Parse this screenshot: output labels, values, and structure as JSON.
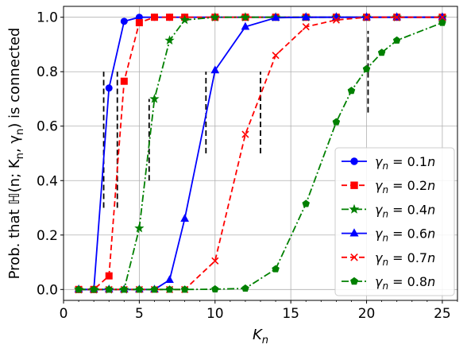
{
  "chart_data": {
    "type": "line",
    "title": "",
    "xlabel": "K",
    "xlabel_sub": "n",
    "ylabel": "Prob. that ℍ(n; K",
    "ylabel_sub1": "n",
    "ylabel_mid": ", γ",
    "ylabel_sub2": "n",
    "ylabel_end": ") is connected",
    "xlim": [
      0,
      26
    ],
    "ylim": [
      -0.04,
      1.04
    ],
    "xticks": [
      0,
      5,
      10,
      15,
      20,
      25
    ],
    "xtick_labels": [
      "0",
      "5",
      "10",
      "15",
      "20",
      "25"
    ],
    "yticks": [
      0.0,
      0.2,
      0.4,
      0.6,
      0.8,
      1.0
    ],
    "ytick_labels": [
      "0.0",
      "0.2",
      "0.4",
      "0.6",
      "0.8",
      "1.0"
    ],
    "grid": true,
    "legend_position": "lower-right",
    "series": [
      {
        "name": "γn = 0.1n",
        "legend_prefix": "γ",
        "legend_sub": "n",
        "legend_suffix": " = 0.1",
        "legend_end": "n",
        "color": "#0000ff",
        "marker": "circle",
        "dash": "solid",
        "x": [
          1,
          2,
          3,
          4,
          5,
          6,
          7,
          8,
          10,
          12,
          14,
          16,
          18,
          20,
          22,
          25
        ],
        "y": [
          0,
          0,
          0.74,
          0.985,
          1,
          1,
          1,
          1,
          1,
          1,
          1,
          1,
          1,
          1,
          1,
          1
        ]
      },
      {
        "name": "γn = 0.2n",
        "legend_prefix": "γ",
        "legend_sub": "n",
        "legend_suffix": " = 0.2",
        "legend_end": "n",
        "color": "#ff0000",
        "marker": "square",
        "dash": "dashed",
        "x": [
          1,
          2,
          3,
          4,
          5,
          6,
          7,
          8,
          10,
          12,
          14,
          16,
          18,
          20,
          22,
          25
        ],
        "y": [
          0,
          0,
          0.05,
          0.765,
          0.98,
          1,
          1,
          1,
          1,
          1,
          1,
          1,
          1,
          1,
          1,
          1
        ]
      },
      {
        "name": "γn = 0.4n",
        "legend_prefix": "γ",
        "legend_sub": "n",
        "legend_suffix": " = 0.4",
        "legend_end": "n",
        "color": "#008000",
        "marker": "star",
        "dash": "dashdot",
        "x": [
          1,
          2,
          3,
          4,
          5,
          6,
          7,
          8,
          10,
          12,
          14,
          16,
          18,
          20,
          22,
          25
        ],
        "y": [
          0,
          0,
          0,
          0,
          0.225,
          0.7,
          0.915,
          0.99,
          1,
          1,
          1,
          1,
          1,
          1,
          1,
          1
        ]
      },
      {
        "name": "γn = 0.6n",
        "legend_prefix": "γ",
        "legend_sub": "n",
        "legend_suffix": " = 0.6",
        "legend_end": "n",
        "color": "#0000ff",
        "marker": "triangle",
        "dash": "solid",
        "x": [
          1,
          2,
          3,
          4,
          5,
          6,
          7,
          8,
          10,
          12,
          14,
          16,
          18,
          20,
          22,
          25
        ],
        "y": [
          0,
          0,
          0,
          0,
          0,
          0,
          0.035,
          0.26,
          0.805,
          0.965,
          0.998,
          1,
          1,
          1,
          1,
          1
        ]
      },
      {
        "name": "γn = 0.7n",
        "legend_prefix": "γ",
        "legend_sub": "n",
        "legend_suffix": " = 0.7",
        "legend_end": "n",
        "color": "#ff0000",
        "marker": "x",
        "dash": "dashed",
        "x": [
          1,
          2,
          3,
          4,
          5,
          6,
          7,
          8,
          10,
          12,
          14,
          16,
          18,
          20,
          22,
          25
        ],
        "y": [
          0,
          0,
          0,
          0,
          0,
          0,
          0,
          0,
          0.105,
          0.57,
          0.86,
          0.965,
          0.99,
          1,
          1,
          1
        ]
      },
      {
        "name": "γn = 0.8n",
        "legend_prefix": "γ",
        "legend_sub": "n",
        "legend_suffix": " = 0.8",
        "legend_end": "n",
        "color": "#008000",
        "marker": "pentagon",
        "dash": "dashdot",
        "x": [
          1,
          2,
          3,
          4,
          5,
          6,
          7,
          8,
          10,
          12,
          14,
          16,
          18,
          19,
          20,
          21,
          22,
          25
        ],
        "y": [
          0,
          0,
          0,
          0,
          0,
          0,
          0,
          0,
          0.001,
          0.004,
          0.075,
          0.315,
          0.615,
          0.73,
          0.81,
          0.87,
          0.915,
          0.98
        ]
      }
    ],
    "threshold_markers": [
      {
        "x": 2.65,
        "y_from": 0.3,
        "y_to": 0.8
      },
      {
        "x": 3.55,
        "y_from": 0.3,
        "y_to": 0.8
      },
      {
        "x": 5.65,
        "y_from": 0.4,
        "y_to": 0.7
      },
      {
        "x": 9.4,
        "y_from": 0.5,
        "y_to": 0.8
      },
      {
        "x": 13.0,
        "y_from": 0.5,
        "y_to": 0.8
      },
      {
        "x": 20.1,
        "y_from": 0.65,
        "y_to": 0.95
      }
    ]
  }
}
